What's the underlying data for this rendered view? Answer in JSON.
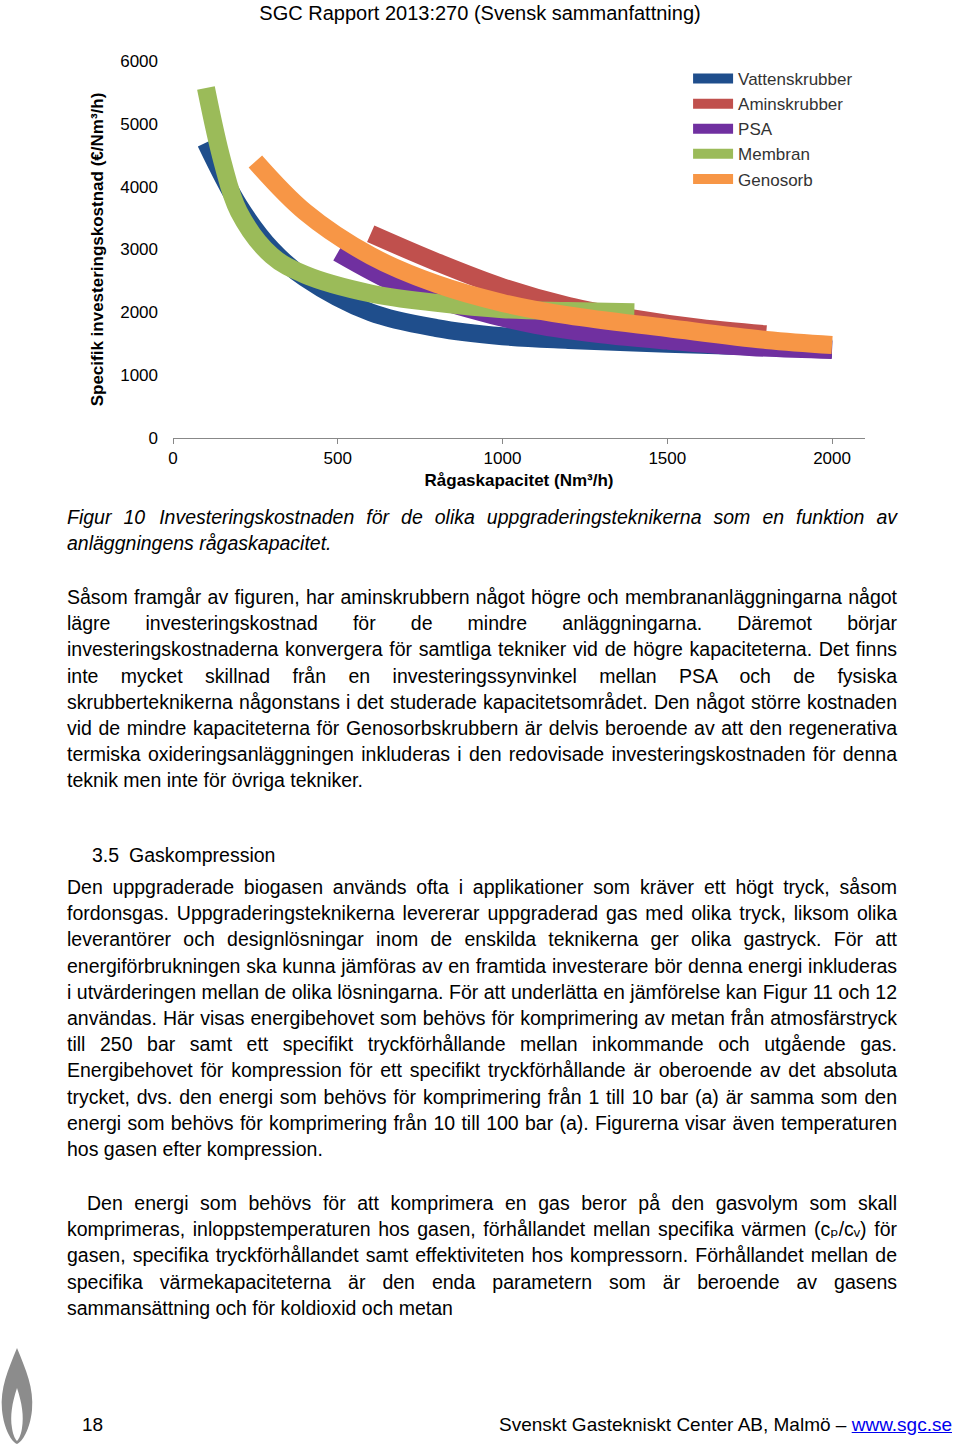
{
  "header": {
    "title": "SGC Rapport 2013:270 (Svensk sammanfattning)"
  },
  "chart_data": {
    "type": "line",
    "x_label": "Rågaskapacitet (Nm³/h)",
    "y_label": "Specifik investeringskostnad (€/Nm³/h)",
    "xlim": [
      0,
      2100
    ],
    "xticks": [
      0,
      500,
      1000,
      1500,
      2000
    ],
    "ylim": [
      0,
      6000
    ],
    "yticks": [
      0,
      1000,
      2000,
      3000,
      4000,
      5000,
      6000
    ],
    "grid": false,
    "legend": "top right",
    "series": [
      {
        "name": "Vattenskrubber",
        "color": "#1f4e8c",
        "x": [
          100,
          200,
          300,
          400,
          600,
          800,
          1000,
          1200,
          1500,
          1800,
          2000
        ],
        "values": [
          4700,
          3700,
          3000,
          2550,
          2000,
          1750,
          1620,
          1560,
          1500,
          1450,
          1420
        ]
      },
      {
        "name": "Aminskrubber",
        "color": "#c0504d",
        "x": [
          600,
          800,
          1000,
          1200,
          1400,
          1600,
          1800
        ],
        "values": [
          3250,
          2800,
          2400,
          2100,
          1900,
          1750,
          1650
        ]
      },
      {
        "name": "PSA",
        "color": "#7030a0",
        "x": [
          500,
          700,
          900,
          1100,
          1300,
          1500,
          1750,
          2000
        ],
        "values": [
          2950,
          2400,
          2050,
          1800,
          1650,
          1550,
          1450,
          1400
        ]
      },
      {
        "name": "Membran",
        "color": "#9bbb59",
        "x": [
          100,
          150,
          200,
          300,
          400,
          600,
          800,
          1000,
          1200,
          1400
        ],
        "values": [
          5570,
          4400,
          3600,
          2900,
          2600,
          2300,
          2150,
          2050,
          2020,
          2000
        ]
      },
      {
        "name": "Genosorb",
        "color": "#f79646",
        "x": [
          250,
          400,
          600,
          800,
          1000,
          1200,
          1500,
          1800,
          2000
        ],
        "values": [
          4400,
          3600,
          2900,
          2450,
          2150,
          1950,
          1750,
          1560,
          1480
        ]
      }
    ]
  },
  "caption": {
    "label": "Figur 10",
    "text": "Investeringskostnaden för de olika uppgraderingsteknikerna som en funktion av anläggningens rågaskapacitet."
  },
  "paragraphs": [
    "Såsom framgår av figuren, har aminskrubbern något högre och membrananläggningarna något lägre investeringskostnad för de mindre anläggningarna. Däremot börjar investeringskostnaderna konvergera för samtliga tekniker vid de högre kapaciteterna. Det finns inte mycket skillnad från en investeringssynvinkel mellan PSA och de fysiska skrubberteknikerna någonstans i det studerade kapacitetsområdet. Den något större kostnaden vid de mindre kapaciteterna för Genosorbskrubbern är delvis beroende av att den regenerativa termiska oxideringsanläggningen inkluderas i den redovisade investeringskostnaden för denna teknik men inte för övriga tekniker."
  ],
  "section": {
    "number": "3.5",
    "title": "Gaskompression",
    "paragraphs": [
      "Den uppgraderade biogasen används ofta i applikationer som kräver ett högt tryck, såsom fordonsgas. Uppgraderingsteknikerna levererar uppgraderad gas med olika tryck, liksom olika leverantörer och designlösningar inom de enskilda teknikerna ger olika gastryck. För att energiförbrukningen ska kunna jämföras av en framtida investerare bör denna energi inkluderas i utvärderingen mellan de olika lösningarna. För att underlätta en jämförelse kan Figur 11 och 12 användas. Här visas energibehovet som behövs för komprimering av metan från atmosfärstryck till 250 bar samt ett specifikt tryckförhållande mellan inkommande och utgående gas. Energibehovet för kompression för ett specifikt tryckförhållande är oberoende av det absoluta trycket, dvs. den energi som behövs för komprimering från 1 till 10 bar (a) är samma som den energi som behövs för komprimering från 10 till 100 bar (a). Figurerna visar även temperaturen hos gasen efter kompression.",
      "Den energi som behövs för att komprimera en gas beror på den gasvolym som skall komprimeras, inloppstemperaturen hos gasen, förhållandet mellan specifika värmen (cₚ/cᵥ) för gasen, specifika tryckförhållandet samt effektiviteten hos kompressorn. Förhållandet mellan de specifika värmekapaciteterna är den enda parametern som är beroende av gasens sammansättning och för koldioxid och metan"
    ]
  },
  "footer": {
    "page": "18",
    "text": "Svenskt Gastekniskt Center AB, Malmö –",
    "link": "www.sgc.se"
  }
}
